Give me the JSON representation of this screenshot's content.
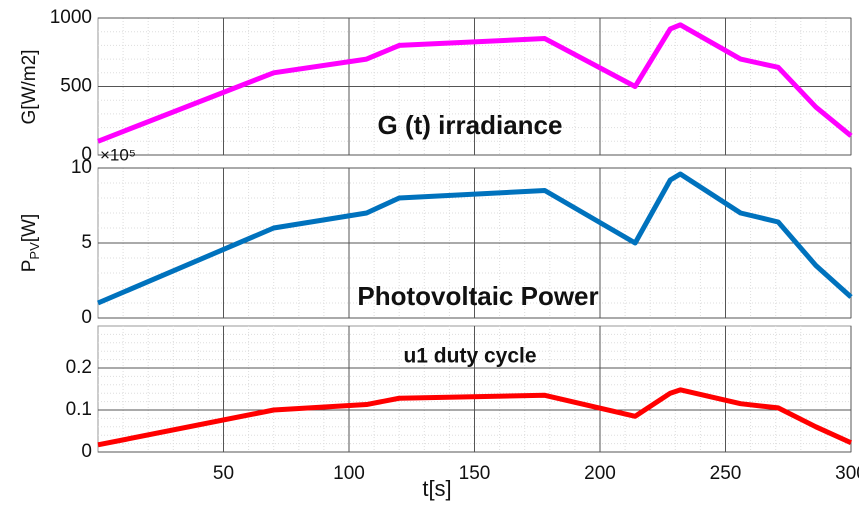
{
  "chart_data": [
    {
      "type": "line",
      "title": "G (t) irradiance",
      "ylabel": "G[W/m2]",
      "color": "#ff00ff",
      "x": [
        0,
        70,
        107,
        120,
        178,
        214,
        228,
        232,
        256,
        271,
        286,
        300
      ],
      "values": [
        100,
        600,
        700,
        800,
        850,
        500,
        920,
        950,
        700,
        640,
        350,
        140
      ],
      "xlim": [
        0,
        300
      ],
      "xticks": [
        50,
        100,
        150,
        200,
        250,
        300
      ],
      "ylim": [
        0,
        1000
      ],
      "yticks": [
        0,
        500,
        1000
      ],
      "grid": true
    },
    {
      "type": "line",
      "title": "Photovoltaic Power",
      "ylabel": {
        "main": "P",
        "sub": "PV",
        "unit": "[W]"
      },
      "y_exponent": "×10⁵",
      "color": "#0072bd",
      "x": [
        0,
        70,
        107,
        120,
        178,
        214,
        228,
        232,
        256,
        271,
        286,
        300
      ],
      "values": [
        1,
        6,
        7,
        8,
        8.5,
        5,
        9.2,
        9.6,
        7,
        6.4,
        3.5,
        1.4
      ],
      "xlim": [
        0,
        300
      ],
      "xticks": [
        50,
        100,
        150,
        200,
        250,
        300
      ],
      "ylim": [
        0,
        10
      ],
      "yticks": [
        0,
        5,
        10
      ],
      "grid": true
    },
    {
      "type": "line",
      "title": "u1 duty cycle",
      "xlabel": "t[s]",
      "color": "#ff0000",
      "x": [
        0,
        70,
        107,
        120,
        178,
        214,
        228,
        232,
        256,
        271,
        286,
        300
      ],
      "values": [
        0.017,
        0.1,
        0.113,
        0.128,
        0.135,
        0.085,
        0.14,
        0.148,
        0.115,
        0.105,
        0.06,
        0.022
      ],
      "xlim": [
        0,
        300
      ],
      "xticks": [
        50,
        100,
        150,
        200,
        250,
        300
      ],
      "ylim": [
        0,
        0.3
      ],
      "yticks": [
        0,
        0.1,
        0.2
      ],
      "grid": true
    }
  ]
}
